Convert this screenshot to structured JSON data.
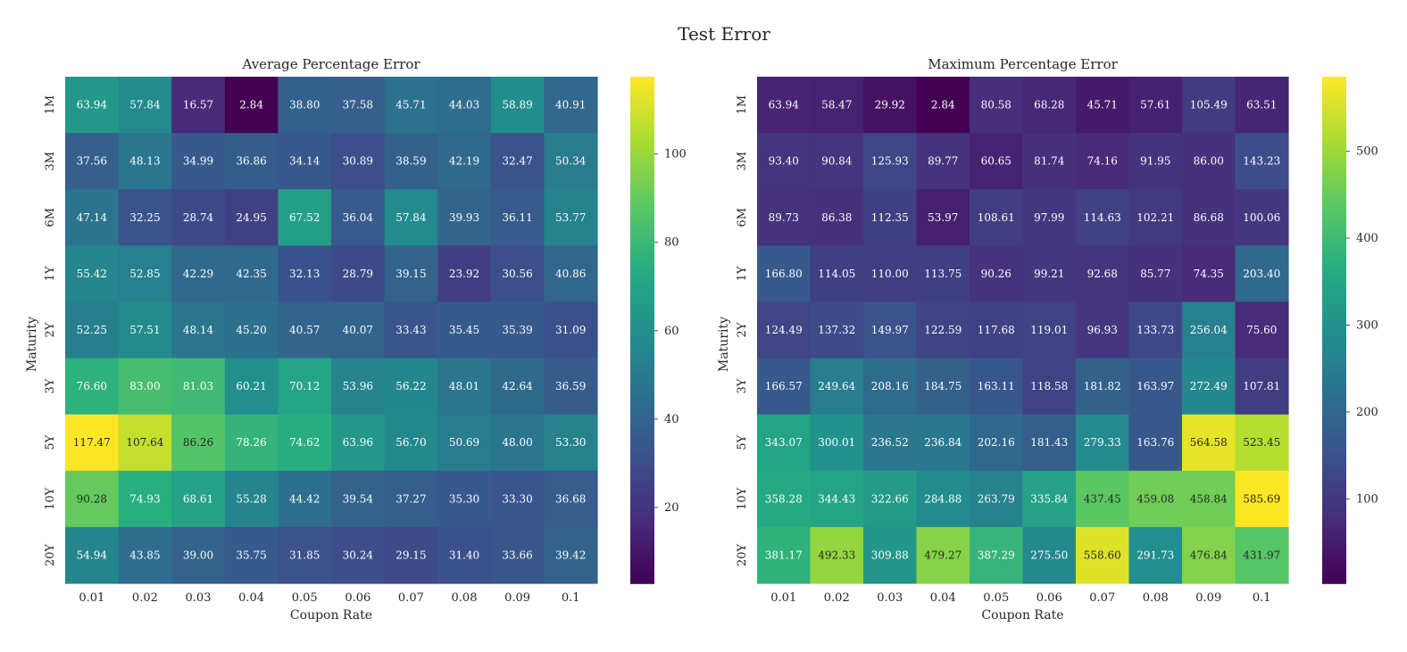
{
  "figure": {
    "title": "Test Error"
  },
  "chart_data": [
    {
      "type": "heatmap",
      "title": "Average Percentage Error",
      "xlabel": "Coupon Rate",
      "ylabel": "Maturity",
      "x_categories": [
        "0.01",
        "0.02",
        "0.03",
        "0.04",
        "0.05",
        "0.06",
        "0.07",
        "0.08",
        "0.09",
        "0.1"
      ],
      "y_categories": [
        "1M",
        "3M",
        "6M",
        "1Y",
        "2Y",
        "3Y",
        "5Y",
        "10Y",
        "20Y"
      ],
      "values": [
        [
          "63.94",
          "57.84",
          "16.57",
          "2.84",
          "38.80",
          "37.58",
          "45.71",
          "44.03",
          "58.89",
          "40.91"
        ],
        [
          "37.56",
          "48.13",
          "34.99",
          "36.86",
          "34.14",
          "30.89",
          "38.59",
          "42.19",
          "32.47",
          "50.34"
        ],
        [
          "47.14",
          "32.25",
          "28.74",
          "24.95",
          "67.52",
          "36.04",
          "57.84",
          "39.93",
          "36.11",
          "53.77"
        ],
        [
          "55.42",
          "52.85",
          "42.29",
          "42.35",
          "32.13",
          "28.79",
          "39.15",
          "23.92",
          "30.56",
          "40.86"
        ],
        [
          "52.25",
          "57.51",
          "48.14",
          "45.20",
          "40.57",
          "40.07",
          "33.43",
          "35.45",
          "35.39",
          "31.09"
        ],
        [
          "76.60",
          "83.00",
          "81.03",
          "60.21",
          "70.12",
          "53.96",
          "56.22",
          "48.01",
          "42.64",
          "36.59"
        ],
        [
          "117.47",
          "107.64",
          "86.26",
          "78.26",
          "74.62",
          "63.96",
          "56.70",
          "50.69",
          "48.00",
          "53.30"
        ],
        [
          "90.28",
          "74.93",
          "68.61",
          "55.28",
          "44.42",
          "39.54",
          "37.27",
          "35.30",
          "33.30",
          "36.68"
        ],
        [
          "54.94",
          "43.85",
          "39.00",
          "35.75",
          "31.85",
          "30.24",
          "29.15",
          "31.40",
          "33.66",
          "39.42"
        ]
      ],
      "colormap": "viridis",
      "colorbar": {
        "ticks": [
          "20",
          "40",
          "60",
          "80",
          "100"
        ]
      }
    },
    {
      "type": "heatmap",
      "title": "Maximum Percentage Error",
      "xlabel": "Coupon Rate",
      "ylabel": "Maturity",
      "x_categories": [
        "0.01",
        "0.02",
        "0.03",
        "0.04",
        "0.05",
        "0.06",
        "0.07",
        "0.08",
        "0.09",
        "0.1"
      ],
      "y_categories": [
        "1M",
        "3M",
        "6M",
        "1Y",
        "2Y",
        "3Y",
        "5Y",
        "10Y",
        "20Y"
      ],
      "values": [
        [
          "63.94",
          "58.47",
          "29.92",
          "2.84",
          "80.58",
          "68.28",
          "45.71",
          "57.61",
          "105.49",
          "63.51"
        ],
        [
          "93.40",
          "90.84",
          "125.93",
          "89.77",
          "60.65",
          "81.74",
          "74.16",
          "91.95",
          "86.00",
          "143.23"
        ],
        [
          "89.73",
          "86.38",
          "112.35",
          "53.97",
          "108.61",
          "97.99",
          "114.63",
          "102.21",
          "86.68",
          "100.06"
        ],
        [
          "166.80",
          "114.05",
          "110.00",
          "113.75",
          "90.26",
          "99.21",
          "92.68",
          "85.77",
          "74.35",
          "203.40"
        ],
        [
          "124.49",
          "137.32",
          "149.97",
          "122.59",
          "117.68",
          "119.01",
          "96.93",
          "133.73",
          "256.04",
          "75.60"
        ],
        [
          "166.57",
          "249.64",
          "208.16",
          "184.75",
          "163.11",
          "118.58",
          "181.82",
          "163.97",
          "272.49",
          "107.81"
        ],
        [
          "343.07",
          "300.01",
          "236.52",
          "236.84",
          "202.16",
          "181.43",
          "279.33",
          "163.76",
          "564.58",
          "523.45"
        ],
        [
          "358.28",
          "344.43",
          "322.66",
          "284.88",
          "263.79",
          "335.84",
          "437.45",
          "459.08",
          "458.84",
          "585.69"
        ],
        [
          "381.17",
          "492.33",
          "309.88",
          "479.27",
          "387.29",
          "275.50",
          "558.60",
          "291.73",
          "476.84",
          "431.97"
        ]
      ],
      "colormap": "viridis",
      "colorbar": {
        "ticks": [
          "100",
          "200",
          "300",
          "400",
          "500"
        ]
      }
    }
  ]
}
